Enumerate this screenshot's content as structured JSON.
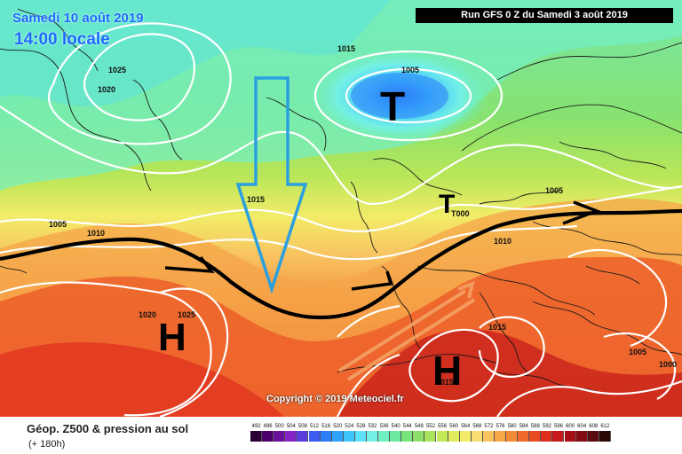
{
  "header": {
    "date_label": "Samedi 10 août 2019",
    "time_label": "14:00 locale",
    "run_label": "Run GFS 0 Z du Samedi 3 août 2019"
  },
  "footer": {
    "product_title": "Géop. Z500 & pression au sol",
    "forecast_range": "(+ 180h)",
    "copyright": "Copyright © 2019 Meteociel.fr"
  },
  "pressure_systems": [
    {
      "id": "low-north",
      "letter": "T"
    },
    {
      "id": "low-scandinavia",
      "letter": "T"
    },
    {
      "id": "high-atlantic",
      "letter": "H"
    },
    {
      "id": "high-mediterranean",
      "letter": "H"
    }
  ],
  "isobar_labels": [
    "1025",
    "1020",
    "1015",
    "1005",
    "T000",
    "1015",
    "1005",
    "1000",
    "1005",
    "1010",
    "1015",
    "1020",
    "1025",
    "1010",
    "1015",
    "015",
    "1005",
    "1000"
  ],
  "legend": {
    "values": [
      "492",
      "496",
      "500",
      "504",
      "508",
      "512",
      "516",
      "520",
      "524",
      "528",
      "532",
      "536",
      "540",
      "544",
      "548",
      "552",
      "556",
      "560",
      "564",
      "568",
      "572",
      "576",
      "580",
      "584",
      "588",
      "592",
      "596",
      "600",
      "604",
      "608",
      "612"
    ],
    "colors": [
      "#2b0037",
      "#4a0068",
      "#6a109a",
      "#8624c8",
      "#5a3cdc",
      "#3a5cf0",
      "#2d7df8",
      "#2fa2fc",
      "#3ec6fc",
      "#5ee2fa",
      "#74f0e6",
      "#70f0c0",
      "#6ceaa0",
      "#78e47c",
      "#8ede68",
      "#a8e45c",
      "#c4e858",
      "#e0ec5c",
      "#f2ec68",
      "#f8de72",
      "#f8c460",
      "#f8a848",
      "#f68a38",
      "#f06a2c",
      "#e84a22",
      "#de2e1e",
      "#c81a1a",
      "#a80e16",
      "#860a14",
      "#5a0a10",
      "#2a0808"
    ]
  },
  "colors": {
    "header_text": "#1a6cff",
    "isobar": "#ffffff",
    "trough_arrow": "#2aa0e0",
    "jet_stream": "#000000"
  }
}
